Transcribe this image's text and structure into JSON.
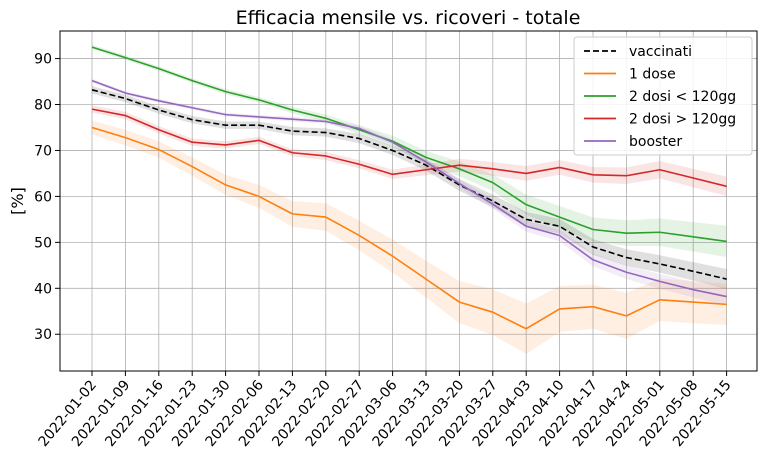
{
  "chart_data": {
    "type": "line",
    "title": "Efficacia mensile vs. ricoveri - totale",
    "xlabel": "",
    "ylabel": "[%]",
    "x": [
      "2022-01-02",
      "2022-01-09",
      "2022-01-16",
      "2022-01-23",
      "2022-01-30",
      "2022-02-06",
      "2022-02-13",
      "2022-02-20",
      "2022-02-27",
      "2022-03-06",
      "2022-03-13",
      "2022-03-20",
      "2022-03-27",
      "2022-04-03",
      "2022-04-10",
      "2022-04-17",
      "2022-04-24",
      "2022-05-01",
      "2022-05-08",
      "2022-05-15"
    ],
    "ylim": [
      22,
      96
    ],
    "yticks": [
      30,
      40,
      50,
      60,
      70,
      80,
      90
    ],
    "grid": true,
    "legend_position": "top-right",
    "series": [
      {
        "name": "vaccinati",
        "color": "#000000",
        "dash": true,
        "values": [
          83.2,
          81.3,
          78.8,
          76.7,
          75.5,
          75.5,
          74.2,
          73.9,
          72.6,
          70.0,
          66.8,
          62.5,
          59.0,
          55.0,
          53.5,
          49.0,
          46.7,
          45.3,
          43.7,
          42.0
        ],
        "band": [
          0.8,
          0.8,
          0.8,
          0.8,
          0.8,
          0.8,
          0.9,
          0.9,
          1.0,
          1.0,
          1.2,
          1.3,
          1.4,
          1.6,
          1.6,
          1.7,
          1.8,
          1.9,
          2.0,
          2.2
        ]
      },
      {
        "name": "1 dose",
        "color": "#ff7f0e",
        "dash": false,
        "values": [
          75.0,
          72.8,
          70.2,
          66.5,
          62.5,
          60.0,
          56.2,
          55.5,
          51.5,
          47.0,
          42.0,
          37.0,
          34.8,
          31.2,
          35.5,
          36.0,
          34.0,
          37.5,
          37.0,
          36.5
        ],
        "band": [
          1.5,
          1.7,
          1.8,
          2.0,
          2.2,
          2.5,
          2.8,
          3.0,
          3.2,
          3.6,
          4.0,
          4.6,
          5.0,
          5.5,
          5.0,
          4.8,
          5.0,
          4.6,
          4.6,
          4.5
        ]
      },
      {
        "name": "2 dosi < 120gg",
        "color": "#2ca02c",
        "dash": false,
        "values": [
          92.5,
          90.2,
          87.8,
          85.2,
          82.8,
          81.0,
          78.8,
          77.0,
          74.5,
          72.0,
          68.5,
          66.0,
          63.0,
          58.2,
          55.5,
          52.8,
          52.0,
          52.2,
          51.2,
          50.2
        ],
        "band": [
          0.5,
          0.5,
          0.5,
          0.5,
          0.6,
          0.6,
          0.7,
          0.8,
          1.0,
          1.2,
          1.4,
          1.6,
          1.8,
          2.2,
          2.4,
          2.6,
          2.8,
          3.0,
          3.2,
          3.4
        ]
      },
      {
        "name": "2 dosi > 120gg",
        "color": "#d62728",
        "dash": false,
        "values": [
          79.0,
          77.6,
          74.5,
          71.8,
          71.2,
          72.2,
          69.5,
          68.8,
          67.0,
          64.8,
          65.8,
          66.8,
          66.0,
          65.0,
          66.3,
          64.7,
          64.5,
          65.8,
          64.0,
          62.2
        ],
        "band": [
          0.8,
          0.8,
          0.8,
          0.8,
          0.8,
          0.8,
          0.8,
          0.9,
          0.9,
          1.0,
          1.2,
          1.4,
          1.5,
          1.6,
          1.6,
          1.7,
          1.8,
          1.9,
          2.0,
          2.1
        ]
      },
      {
        "name": "booster",
        "color": "#9467bd",
        "dash": false,
        "values": [
          85.2,
          82.5,
          80.8,
          79.3,
          77.8,
          77.3,
          76.8,
          76.3,
          74.8,
          71.8,
          67.5,
          62.8,
          58.3,
          53.5,
          51.5,
          46.2,
          43.5,
          41.5,
          39.7,
          38.2
        ],
        "band": [
          0.4,
          0.4,
          0.4,
          0.4,
          0.4,
          0.4,
          0.5,
          0.5,
          0.6,
          0.6,
          0.8,
          0.9,
          1.0,
          1.2,
          1.3,
          1.4,
          1.5,
          1.6,
          1.7,
          1.9
        ]
      }
    ]
  }
}
